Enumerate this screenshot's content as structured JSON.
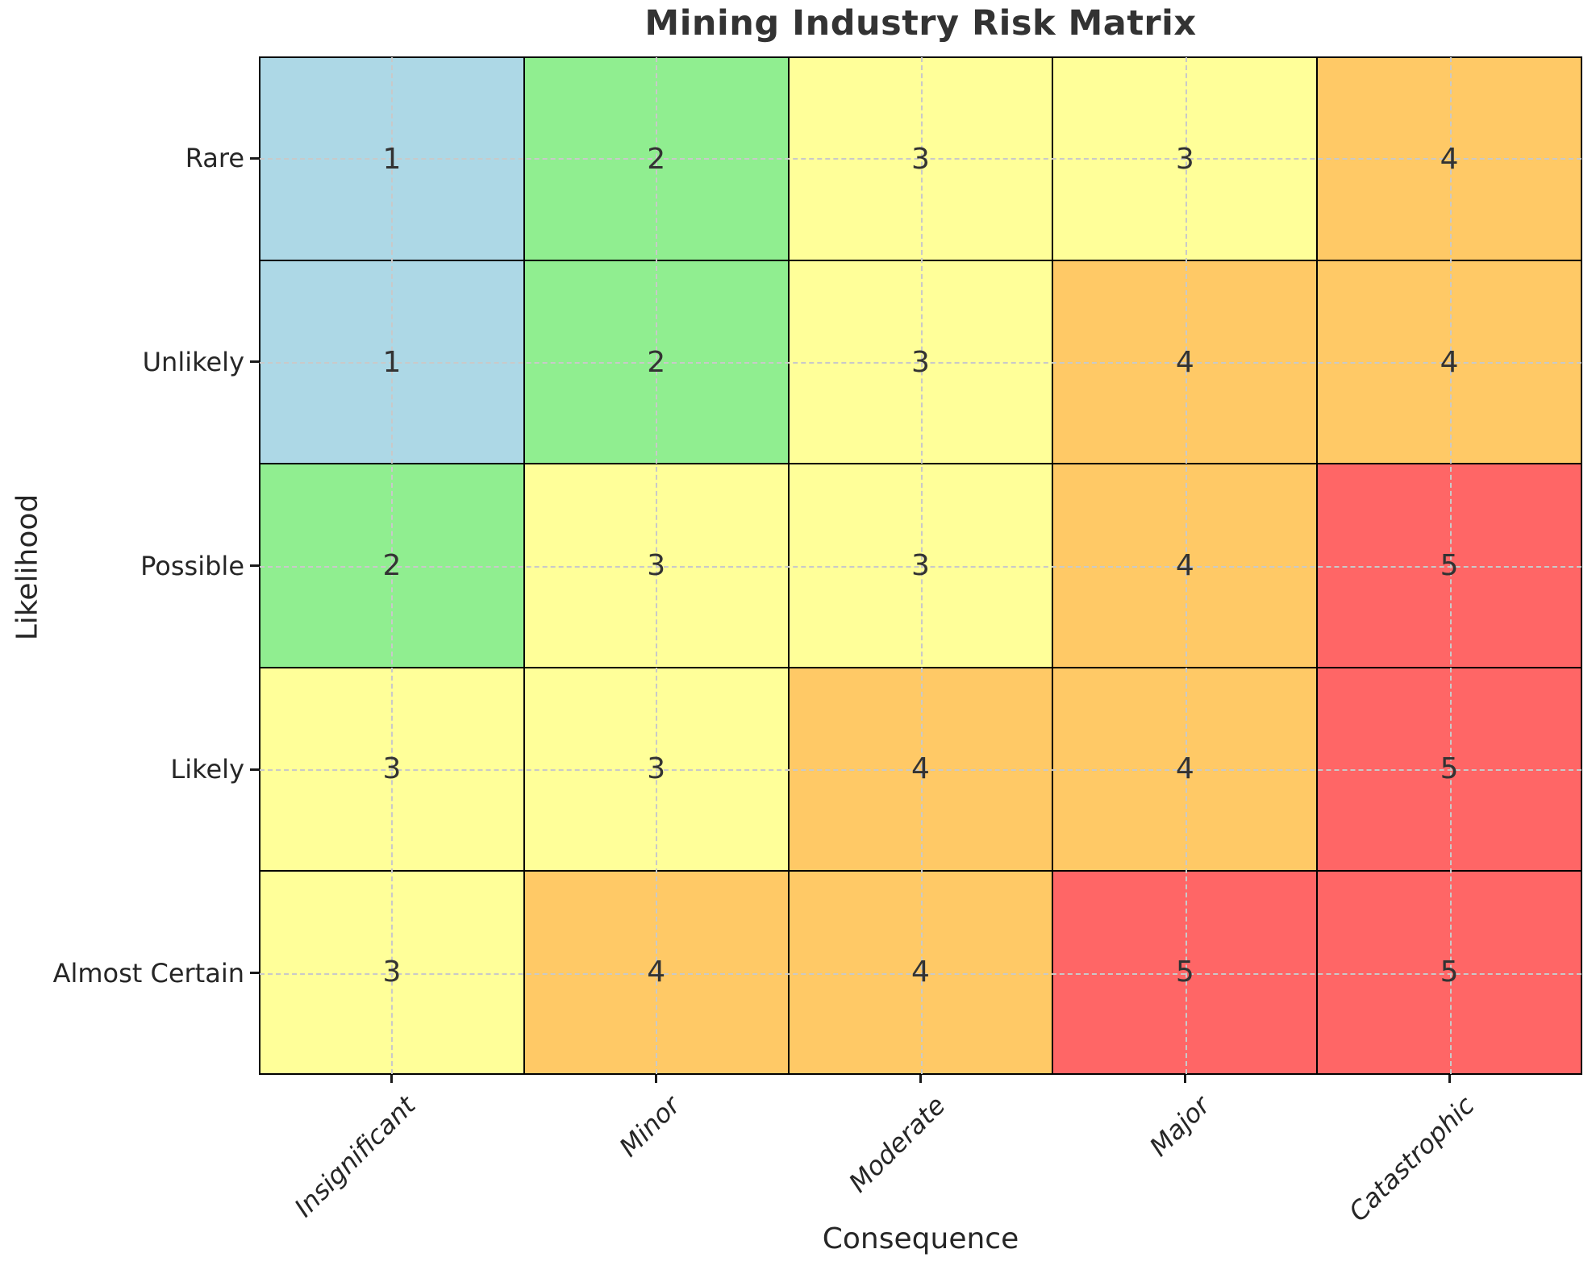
{
  "chart_data": {
    "type": "heatmap",
    "title": "Mining Industry Risk Matrix",
    "xlabel": "Consequence",
    "ylabel": "Likelihood",
    "x_categories": [
      "Insignificant",
      "Minor",
      "Moderate",
      "Major",
      "Catastrophic"
    ],
    "y_categories": [
      "Rare",
      "Unlikely",
      "Possible",
      "Likely",
      "Almost Certain"
    ],
    "values": [
      [
        1,
        2,
        3,
        3,
        4
      ],
      [
        1,
        2,
        3,
        4,
        4
      ],
      [
        2,
        3,
        3,
        4,
        5
      ],
      [
        3,
        3,
        4,
        4,
        5
      ],
      [
        3,
        4,
        4,
        5,
        5
      ]
    ],
    "level_colors": {
      "1": "#ADD8E6",
      "2": "#90EE90",
      "3": "#FFFF99",
      "4": "#FFC966",
      "5": "#FF6666"
    },
    "value_text_color": "#333333",
    "cell_border_color": "#000000",
    "grid": true,
    "gridline_color": "#c9c9c9",
    "gridline_style": "dashed",
    "legend": "none",
    "x_tick_rotation_deg": 45,
    "x_tick_style": "italic"
  }
}
